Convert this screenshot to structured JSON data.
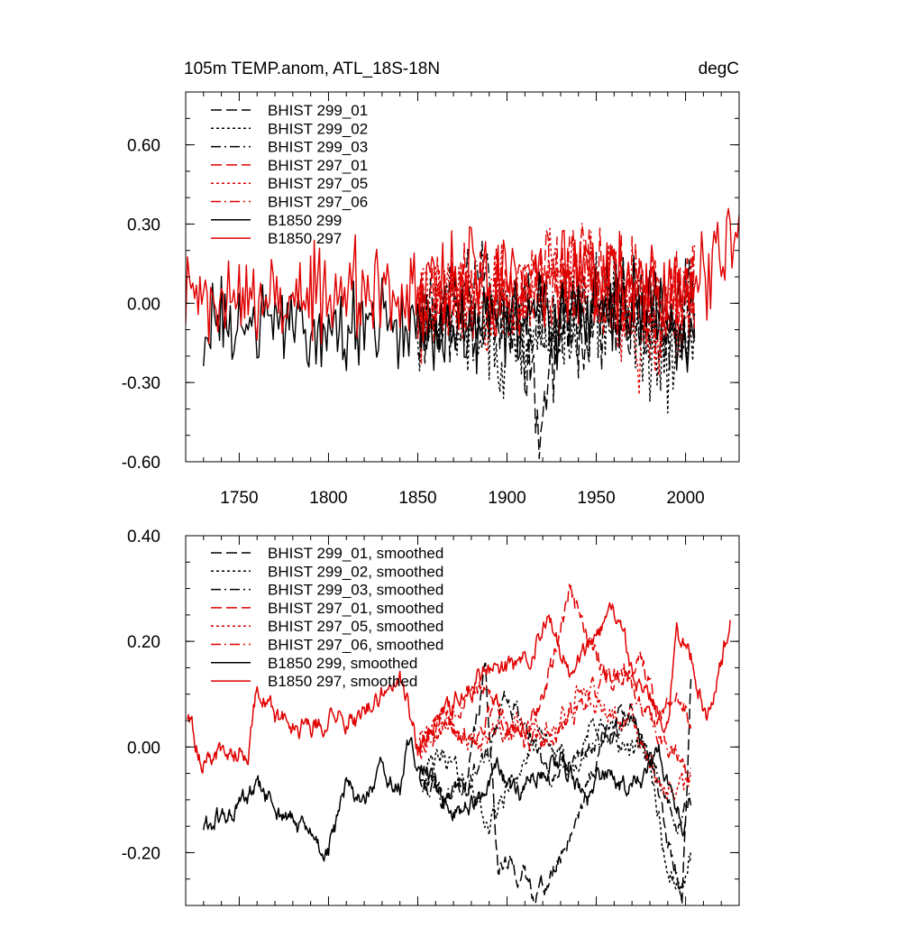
{
  "chart_data": [
    {
      "type": "line",
      "title_left": "105m TEMP.anom, ATL_18S-18N",
      "title_right": "degC",
      "xlim": [
        1720,
        2030
      ],
      "ylim": [
        -0.6,
        0.8
      ],
      "xticks": [
        1750,
        1800,
        1850,
        1900,
        1950,
        2000
      ],
      "xtick_labels": [
        "1750",
        "1800",
        "1850",
        "1900",
        "1950",
        "2000"
      ],
      "yticks": [
        0.6,
        0.3,
        0.0,
        -0.3,
        -0.6
      ],
      "ytick_labels": [
        "0.60",
        "0.30",
        "0.00",
        "-0.30",
        "-0.60"
      ],
      "legend": [
        {
          "label": "BHIST 299_01",
          "color": "#000000",
          "dash": "dash"
        },
        {
          "label": "BHIST 299_02",
          "color": "#000000",
          "dash": "dot"
        },
        {
          "label": "BHIST 299_03",
          "color": "#000000",
          "dash": "dashdot"
        },
        {
          "label": "BHIST 297_01",
          "color": "#e00000",
          "dash": "dash"
        },
        {
          "label": "BHIST 297_05",
          "color": "#e00000",
          "dash": "dot"
        },
        {
          "label": "BHIST 297_06",
          "color": "#e00000",
          "dash": "dashdot"
        },
        {
          "label": "B1850 299",
          "color": "#000000",
          "dash": "solid"
        },
        {
          "label": "B1850 297",
          "color": "#e00000",
          "dash": "solid"
        }
      ],
      "series": [
        {
          "name": "BHIST 299_01",
          "color": "#000000",
          "dash": "dash",
          "anchors": [
            [
              1850,
              -0.08
            ],
            [
              1870,
              -0.05
            ],
            [
              1890,
              -0.05
            ],
            [
              1910,
              -0.12
            ],
            [
              1918,
              -0.48
            ],
            [
              1930,
              -0.1
            ],
            [
              1960,
              -0.02
            ],
            [
              1990,
              -0.12
            ],
            [
              2005,
              -0.05
            ]
          ],
          "noise": 0.14,
          "seed": 11
        },
        {
          "name": "BHIST 299_02",
          "color": "#000000",
          "dash": "dot",
          "anchors": [
            [
              1850,
              -0.05
            ],
            [
              1880,
              -0.08
            ],
            [
              1895,
              -0.2
            ],
            [
              1930,
              -0.08
            ],
            [
              1960,
              0.0
            ],
            [
              1985,
              -0.25
            ],
            [
              1995,
              -0.2
            ],
            [
              2005,
              -0.02
            ]
          ],
          "noise": 0.15,
          "seed": 12
        },
        {
          "name": "BHIST 299_03",
          "color": "#000000",
          "dash": "dashdot",
          "anchors": [
            [
              1850,
              -0.05
            ],
            [
              1885,
              0.05
            ],
            [
              1920,
              -0.08
            ],
            [
              1960,
              0.0
            ],
            [
              1990,
              -0.1
            ],
            [
              2005,
              0.05
            ]
          ],
          "noise": 0.14,
          "seed": 13
        },
        {
          "name": "BHIST 297_01",
          "color": "#e00000",
          "dash": "dash",
          "anchors": [
            [
              1850,
              0.0
            ],
            [
              1880,
              0.05
            ],
            [
              1910,
              0.05
            ],
            [
              1935,
              0.15
            ],
            [
              1960,
              0.1
            ],
            [
              1980,
              0.0
            ],
            [
              2005,
              0.05
            ]
          ],
          "noise": 0.14,
          "seed": 21
        },
        {
          "name": "BHIST 297_05",
          "color": "#e00000",
          "dash": "dot",
          "anchors": [
            [
              1850,
              -0.02
            ],
            [
              1880,
              0.0
            ],
            [
              1910,
              0.02
            ],
            [
              1935,
              0.15
            ],
            [
              1960,
              0.05
            ],
            [
              1975,
              -0.15
            ],
            [
              1995,
              -0.1
            ],
            [
              2005,
              0.05
            ]
          ],
          "noise": 0.15,
          "seed": 22
        },
        {
          "name": "BHIST 297_06",
          "color": "#e00000",
          "dash": "dashdot",
          "anchors": [
            [
              1850,
              0.0
            ],
            [
              1880,
              0.05
            ],
            [
              1910,
              0.03
            ],
            [
              1940,
              0.1
            ],
            [
              1970,
              0.05
            ],
            [
              1990,
              -0.05
            ],
            [
              2005,
              0.05
            ]
          ],
          "noise": 0.14,
          "seed": 23
        },
        {
          "name": "B1850 299",
          "color": "#000000",
          "dash": "solid",
          "anchors": [
            [
              1730,
              -0.1
            ],
            [
              1760,
              -0.08
            ],
            [
              1790,
              -0.08
            ],
            [
              1820,
              -0.1
            ],
            [
              1850,
              -0.08
            ],
            [
              1880,
              -0.1
            ],
            [
              1910,
              -0.05
            ],
            [
              1940,
              -0.05
            ],
            [
              1970,
              0.02
            ],
            [
              2000,
              -0.1
            ],
            [
              2005,
              -0.05
            ]
          ],
          "noise": 0.13,
          "seed": 31
        },
        {
          "name": "B1850 297",
          "color": "#e00000",
          "dash": "solid",
          "anchors": [
            [
              1720,
              0.05
            ],
            [
              1730,
              0.0
            ],
            [
              1760,
              0.02
            ],
            [
              1790,
              0.05
            ],
            [
              1820,
              0.05
            ],
            [
              1850,
              0.03
            ],
            [
              1880,
              0.08
            ],
            [
              1910,
              0.1
            ],
            [
              1940,
              0.12
            ],
            [
              1970,
              0.08
            ],
            [
              2000,
              0.05
            ],
            [
              2020,
              0.15
            ],
            [
              2030,
              0.35
            ]
          ],
          "noise": 0.14,
          "seed": 32
        }
      ]
    },
    {
      "type": "line",
      "xlim": [
        1720,
        2030
      ],
      "ylim": [
        -0.3,
        0.4
      ],
      "xticks": [
        1750,
        1800,
        1850,
        1900,
        1950,
        2000
      ],
      "xtick_labels": [],
      "yticks": [
        0.4,
        0.2,
        0.0,
        -0.2
      ],
      "ytick_labels": [
        "0.40",
        "0.20",
        "0.00",
        "-0.20"
      ],
      "legend": [
        {
          "label": "BHIST 299_01, smoothed",
          "color": "#000000",
          "dash": "dash"
        },
        {
          "label": "BHIST 299_02, smoothed",
          "color": "#000000",
          "dash": "dot"
        },
        {
          "label": "BHIST 299_03, smoothed",
          "color": "#000000",
          "dash": "dashdot"
        },
        {
          "label": "BHIST 297_01, smoothed",
          "color": "#e00000",
          "dash": "dash"
        },
        {
          "label": "BHIST 297_05, smoothed",
          "color": "#e00000",
          "dash": "dot"
        },
        {
          "label": "BHIST 297_06, smoothed",
          "color": "#e00000",
          "dash": "dashdot"
        },
        {
          "label": "B1850 299, smoothed",
          "color": "#000000",
          "dash": "solid"
        },
        {
          "label": "B1850 297, smoothed",
          "color": "#e00000",
          "dash": "solid"
        }
      ],
      "series": [
        {
          "name": "BHIST 299_01, smoothed",
          "color": "#000000",
          "dash": "dash",
          "anchors": [
            [
              1851,
              -0.05
            ],
            [
              1865,
              -0.1
            ],
            [
              1878,
              -0.06
            ],
            [
              1888,
              0.15
            ],
            [
              1895,
              -0.22
            ],
            [
              1905,
              -0.23
            ],
            [
              1915,
              -0.27
            ],
            [
              1925,
              -0.25
            ],
            [
              1940,
              -0.12
            ],
            [
              1955,
              0.02
            ],
            [
              1970,
              0.08
            ],
            [
              1982,
              -0.05
            ],
            [
              1992,
              -0.2
            ],
            [
              1998,
              -0.28
            ],
            [
              2003,
              0.12
            ]
          ],
          "noise": 0.015,
          "seed": 41
        },
        {
          "name": "BHIST 299_02, smoothed",
          "color": "#000000",
          "dash": "dot",
          "anchors": [
            [
              1851,
              -0.05
            ],
            [
              1865,
              -0.02
            ],
            [
              1880,
              -0.08
            ],
            [
              1890,
              -0.15
            ],
            [
              1905,
              -0.05
            ],
            [
              1920,
              0.02
            ],
            [
              1935,
              -0.05
            ],
            [
              1950,
              0.05
            ],
            [
              1965,
              0.0
            ],
            [
              1980,
              -0.02
            ],
            [
              1990,
              -0.24
            ],
            [
              1998,
              -0.27
            ],
            [
              2003,
              -0.2
            ]
          ],
          "noise": 0.015,
          "seed": 42
        },
        {
          "name": "BHIST 299_03, smoothed",
          "color": "#000000",
          "dash": "dashdot",
          "anchors": [
            [
              1851,
              -0.05
            ],
            [
              1865,
              -0.1
            ],
            [
              1880,
              -0.05
            ],
            [
              1890,
              -0.02
            ],
            [
              1900,
              0.1
            ],
            [
              1910,
              0.05
            ],
            [
              1925,
              -0.08
            ],
            [
              1940,
              -0.02
            ],
            [
              1955,
              0.02
            ],
            [
              1970,
              0.05
            ],
            [
              1985,
              -0.05
            ],
            [
              1995,
              -0.15
            ],
            [
              2003,
              -0.1
            ]
          ],
          "noise": 0.015,
          "seed": 43
        },
        {
          "name": "BHIST 297_01, smoothed",
          "color": "#e00000",
          "dash": "dash",
          "anchors": [
            [
              1851,
              0.0
            ],
            [
              1865,
              0.05
            ],
            [
              1880,
              0.02
            ],
            [
              1895,
              0.08
            ],
            [
              1910,
              0.0
            ],
            [
              1925,
              0.15
            ],
            [
              1935,
              0.3
            ],
            [
              1945,
              0.2
            ],
            [
              1960,
              0.12
            ],
            [
              1975,
              0.18
            ],
            [
              1985,
              0.05
            ],
            [
              1995,
              0.1
            ],
            [
              2003,
              0.05
            ]
          ],
          "noise": 0.015,
          "seed": 51
        },
        {
          "name": "BHIST 297_05, smoothed",
          "color": "#e00000",
          "dash": "dot",
          "anchors": [
            [
              1851,
              0.02
            ],
            [
              1865,
              0.05
            ],
            [
              1880,
              0.0
            ],
            [
              1895,
              0.03
            ],
            [
              1910,
              0.05
            ],
            [
              1925,
              0.03
            ],
            [
              1940,
              0.12
            ],
            [
              1955,
              0.06
            ],
            [
              1970,
              0.05
            ],
            [
              1985,
              -0.05
            ],
            [
              1995,
              -0.1
            ],
            [
              2003,
              -0.05
            ]
          ],
          "noise": 0.015,
          "seed": 52
        },
        {
          "name": "BHIST 297_06, smoothed",
          "color": "#e00000",
          "dash": "dashdot",
          "anchors": [
            [
              1851,
              0.0
            ],
            [
              1865,
              0.05
            ],
            [
              1880,
              0.12
            ],
            [
              1895,
              0.08
            ],
            [
              1910,
              0.02
            ],
            [
              1925,
              0.0
            ],
            [
              1940,
              0.08
            ],
            [
              1955,
              0.12
            ],
            [
              1965,
              0.15
            ],
            [
              1975,
              0.08
            ],
            [
              1990,
              0.0
            ],
            [
              2003,
              -0.05
            ]
          ],
          "noise": 0.015,
          "seed": 53
        },
        {
          "name": "B1850 299, smoothed",
          "color": "#000000",
          "dash": "solid",
          "anchors": [
            [
              1730,
              -0.15
            ],
            [
              1745,
              -0.13
            ],
            [
              1760,
              -0.08
            ],
            [
              1775,
              -0.13
            ],
            [
              1790,
              -0.17
            ],
            [
              1800,
              -0.2
            ],
            [
              1810,
              -0.08
            ],
            [
              1820,
              -0.1
            ],
            [
              1830,
              -0.05
            ],
            [
              1840,
              -0.08
            ],
            [
              1845,
              0.0
            ],
            [
              1855,
              -0.05
            ],
            [
              1870,
              -0.12
            ],
            [
              1885,
              -0.1
            ],
            [
              1895,
              -0.05
            ],
            [
              1905,
              -0.1
            ],
            [
              1915,
              -0.05
            ],
            [
              1930,
              -0.02
            ],
            [
              1945,
              -0.1
            ],
            [
              1955,
              -0.05
            ],
            [
              1970,
              -0.08
            ],
            [
              1985,
              -0.02
            ],
            [
              1995,
              -0.1
            ],
            [
              2000,
              -0.15
            ]
          ],
          "noise": 0.015,
          "seed": 61
        },
        {
          "name": "B1850 297, smoothed",
          "color": "#e00000",
          "dash": "solid",
          "anchors": [
            [
              1721,
              0.06
            ],
            [
              1729,
              -0.03
            ],
            [
              1740,
              -0.01
            ],
            [
              1755,
              0.0
            ],
            [
              1760,
              0.12
            ],
            [
              1770,
              0.05
            ],
            [
              1785,
              0.04
            ],
            [
              1800,
              0.05
            ],
            [
              1815,
              0.05
            ],
            [
              1830,
              0.1
            ],
            [
              1840,
              0.14
            ],
            [
              1850,
              0.0
            ],
            [
              1860,
              0.05
            ],
            [
              1875,
              0.1
            ],
            [
              1890,
              0.15
            ],
            [
              1905,
              0.15
            ],
            [
              1915,
              0.2
            ],
            [
              1925,
              0.23
            ],
            [
              1935,
              0.15
            ],
            [
              1950,
              0.2
            ],
            [
              1960,
              0.25
            ],
            [
              1970,
              0.15
            ],
            [
              1980,
              0.1
            ],
            [
              1990,
              0.05
            ],
            [
              1995,
              0.2
            ],
            [
              2005,
              0.15
            ],
            [
              2012,
              0.05
            ],
            [
              2020,
              0.15
            ],
            [
              2025,
              0.24
            ]
          ],
          "noise": 0.015,
          "seed": 62
        }
      ]
    }
  ]
}
